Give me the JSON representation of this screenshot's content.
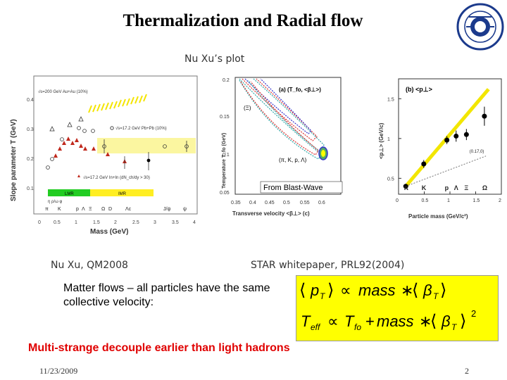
{
  "slide": {
    "title": "Thermalization and Radial flow",
    "plot_caption": "Nu Xu’s plot",
    "citation_left": "Nu Xu, QM2008",
    "citation_right": "STAR whitepaper, PRL92(2004)",
    "body_text": "Matter flows – all particles have the same collective velocity:",
    "highlight": "Multi-strange decouple earlier than light hadrons",
    "date": "11/23/2009",
    "page_number": "2",
    "colors": {
      "highlight": "#e00000",
      "formula_bg": "#ffff00",
      "fit_line": "#f2e600"
    }
  },
  "formula": {
    "eq1": {
      "lhs": "p",
      "lhs_sub": "T",
      "op": "∝",
      "mid": "mass",
      "times": "∗",
      "beta": "β",
      "beta_sub": "T"
    },
    "eq2": {
      "lhs": "T",
      "lhs_sub": "eff",
      "op": "∝",
      "t": "T",
      "t_sub": "fo",
      "plus": "+",
      "mid": "mass",
      "times": "∗",
      "beta": "β",
      "beta_sub": "T",
      "power": "2"
    }
  },
  "panel_left": {
    "ylabel": "Slope parameter T (GeV)",
    "xlabel": "Mass (GeV)",
    "legend": [
      "√s=200 GeV Au+Au (10%)",
      "√s=17.2 GeV Pb+Pb (10%)",
      "√s=17.2 GeV In+In (dN_ch/dy > 30)"
    ],
    "bands": [
      "LMR",
      "IMR"
    ],
    "particles_row": [
      "π",
      "K",
      "p",
      "Λ",
      "Ξ",
      "Ω",
      "D",
      "Λc",
      "J/ψ",
      "ψ"
    ],
    "particles_row2": "η ρ/ω  φ",
    "icon_name": "scatter-plot-figure"
  },
  "panel_mid": {
    "title": "(a) (T_fo, <β⊥>)",
    "label_xi": "(Ξ)",
    "label_light": "(π, K, p, Λ)",
    "annotation": "From Blast-Wave",
    "ylabel": "Temperature T_fo (GeV)",
    "xlabel": "Transverse velocity <β⊥> (c)",
    "icon_name": "contour-plot-figure"
  },
  "chart_data": [
    {
      "type": "scatter",
      "title": "(b) <p⊥>",
      "xlabel": "Particle mass (GeV/c²)",
      "ylabel": "<p⊥> (GeV/c)",
      "xlim": [
        0,
        2
      ],
      "ylim": [
        0.3,
        1.75
      ],
      "x_ticks": [
        "0",
        "0.5",
        "1",
        "1.5",
        "2"
      ],
      "y_ticks": [
        "0.5",
        "1",
        "1.5"
      ],
      "particle_labels": [
        "π",
        "K",
        "p",
        "Λ",
        "Ξ",
        "Ω"
      ],
      "points": [
        {
          "x": 0.14,
          "y": 0.4,
          "err": 0.03
        },
        {
          "x": 0.49,
          "y": 0.68,
          "err": 0.05
        },
        {
          "x": 0.94,
          "y": 0.98,
          "err": 0.05
        },
        {
          "x": 1.12,
          "y": 1.03,
          "err": 0.07
        },
        {
          "x": 1.32,
          "y": 1.05,
          "err": 0.07
        },
        {
          "x": 1.67,
          "y": 1.28,
          "err": 0.12
        }
      ],
      "fit_line": {
        "x": [
          0.14,
          1.75
        ],
        "y": [
          0.4,
          1.62
        ]
      },
      "dashed_line": {
        "label": "(0.17,0)",
        "x": [
          0.14,
          1.7
        ],
        "y": [
          0.4,
          0.78
        ]
      },
      "grid": false
    },
    {
      "type": "scatter",
      "title": "",
      "ylabel": "Temperature T_fo (GeV)",
      "xlabel": "Transverse velocity <β⊥> (c)",
      "xlim": [
        0.35,
        0.6
      ],
      "ylim": [
        0.05,
        0.2
      ],
      "x_ticks": [
        "0.35",
        "0.4",
        "0.45",
        "0.5",
        "0.55",
        "0.6"
      ],
      "y_ticks": [
        "0.05",
        "0.1",
        "0.15",
        "0.2"
      ],
      "grid": false
    },
    {
      "type": "scatter",
      "title": "",
      "xlabel": "Mass (GeV)",
      "ylabel": "Slope parameter T (GeV)",
      "xlim": [
        0,
        4
      ],
      "ylim": [
        0.1,
        0.42
      ],
      "x_ticks": [
        "0",
        "0.5",
        "1",
        "1.5",
        "2",
        "2.5",
        "3",
        "3.5",
        "4"
      ],
      "y_ticks": [
        "0.1",
        "0.2",
        "0.3",
        "0.4"
      ],
      "series": [
        {
          "name": "√s=200 GeV Au+Au (10%)",
          "marker": "triangle-open",
          "x": [
            0.14,
            0.49,
            0.94
          ],
          "y": [
            0.25,
            0.28,
            0.33
          ]
        },
        {
          "name": "√s=17.2 GeV Pb+Pb (10%)",
          "marker": "circle-open",
          "x": [
            0.14,
            0.49,
            0.94,
            1.12,
            1.32,
            1.67,
            3.1
          ],
          "y": [
            0.16,
            0.22,
            0.27,
            0.28,
            0.25,
            0.23,
            0.24
          ]
        },
        {
          "name": "√s=17.2 GeV In+In (dN_ch/dy > 30)",
          "marker": "triangle-filled",
          "x": [
            0.2,
            0.3,
            0.4,
            0.5,
            0.6,
            0.7,
            0.8,
            0.9,
            1.0,
            1.1,
            1.2
          ],
          "y": [
            0.18,
            0.21,
            0.24,
            0.25,
            0.24,
            0.23,
            0.25,
            0.22,
            0.21,
            0.2,
            0.19
          ]
        }
      ],
      "grid": false
    }
  ]
}
